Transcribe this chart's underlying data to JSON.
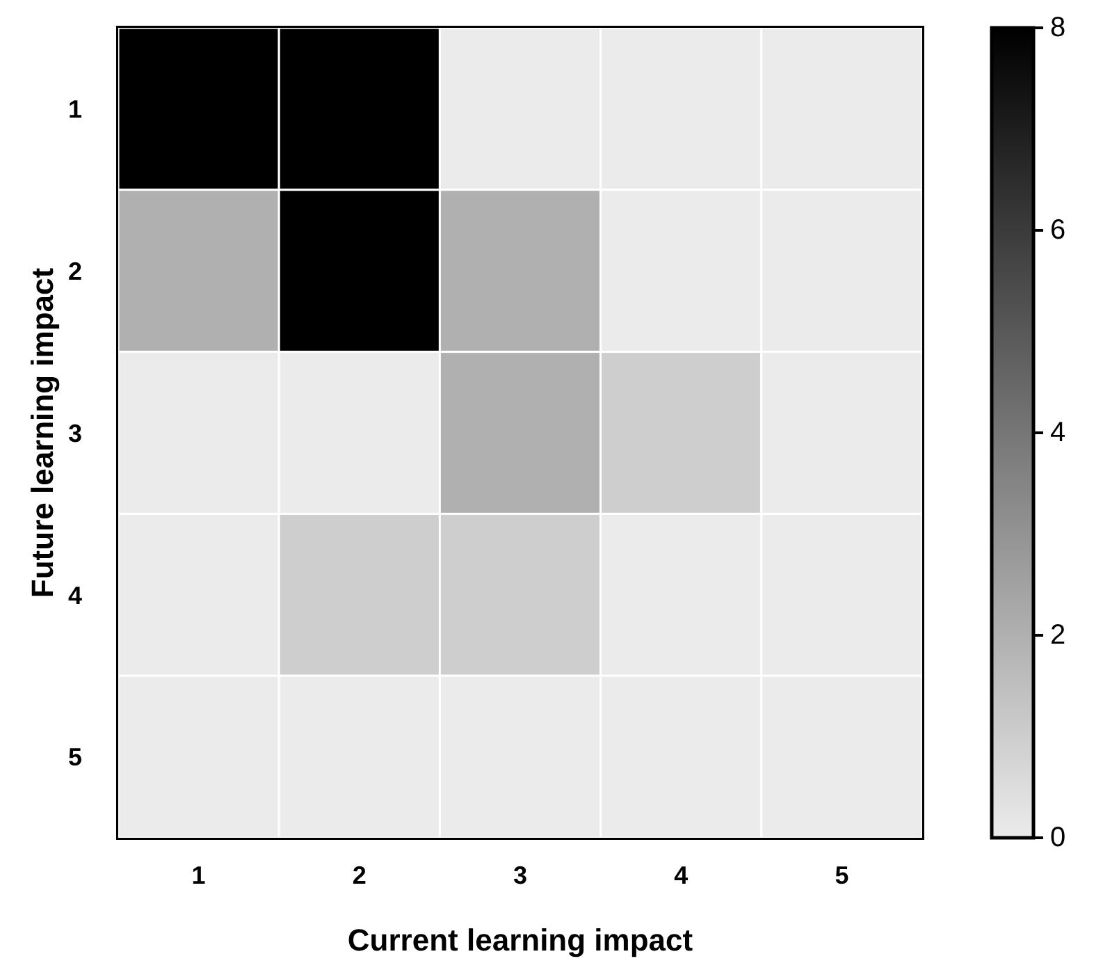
{
  "chart_data": {
    "type": "heatmap",
    "xlabel": "Current learning impact",
    "ylabel": "Future learning impact",
    "categories": [
      "1",
      "2",
      "3",
      "4",
      "5"
    ],
    "y_categories": [
      "1",
      "2",
      "3",
      "4",
      "5"
    ],
    "cells": [
      [
        8,
        8,
        0,
        0,
        0
      ],
      [
        2,
        8,
        2,
        0,
        0
      ],
      [
        0,
        0,
        2,
        1,
        0
      ],
      [
        0,
        1,
        1,
        0,
        0
      ],
      [
        0,
        0,
        0,
        0,
        0
      ]
    ],
    "clim": [
      0,
      8
    ],
    "cticks": [
      0,
      2,
      4,
      6,
      8
    ]
  }
}
